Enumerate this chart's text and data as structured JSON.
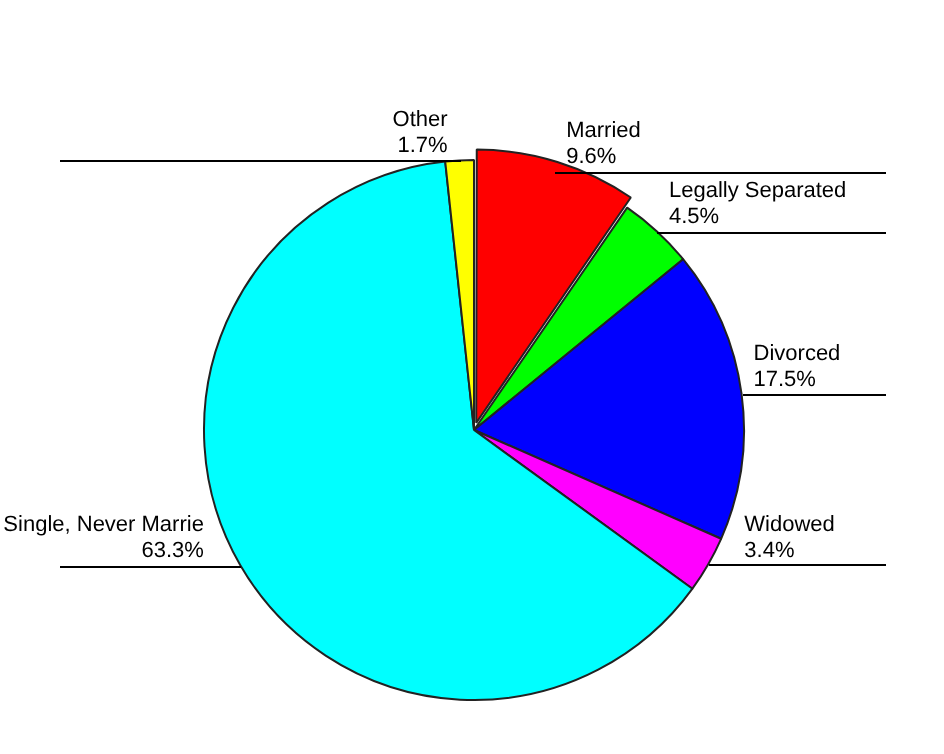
{
  "chart_data": {
    "type": "pie",
    "categories": [
      "Married",
      "Legally Separated",
      "Divorced",
      "Widowed",
      "Single, Never Marrie",
      "Other"
    ],
    "values": [
      9.6,
      4.5,
      17.5,
      3.4,
      63.3,
      1.7
    ],
    "value_labels": [
      "9.6%",
      "4.5%",
      "17.5%",
      "3.4%",
      "63.3%",
      "1.7%"
    ],
    "colors": [
      "#ff0000",
      "#00ff00",
      "#0000ff",
      "#ff00ff",
      "#00ffff",
      "#ffff00"
    ],
    "legend": false
  }
}
